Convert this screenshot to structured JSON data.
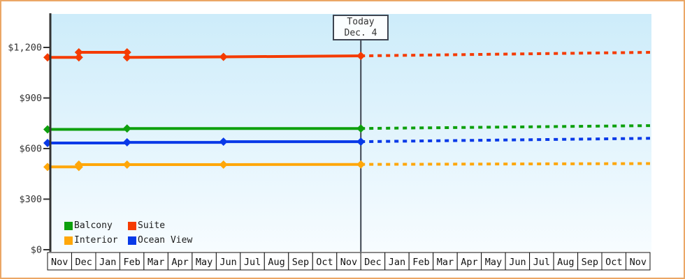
{
  "frame": {
    "border_color": "#eba766",
    "background": "#ffffff"
  },
  "chart_data": {
    "type": "line",
    "title": "",
    "description": "Cruise cabin price history by category with dotted forecast after today marker",
    "axis_color": "#333333",
    "plot_bg_gradient": {
      "top": "#cdecfa",
      "bottom": "#f7fcff"
    },
    "y_axis": {
      "min": 0,
      "max": 1200,
      "ticks": [
        {
          "value": 0,
          "label": "$0"
        },
        {
          "value": 300,
          "label": "$300"
        },
        {
          "value": 600,
          "label": "$600"
        },
        {
          "value": 900,
          "label": "$900"
        },
        {
          "value": 1200,
          "label": "$1,200"
        }
      ]
    },
    "x_axis": {
      "months": [
        "Nov",
        "Dec",
        "Jan",
        "Feb",
        "Mar",
        "Apr",
        "May",
        "Jun",
        "Jul",
        "Aug",
        "Sep",
        "Oct",
        "Nov",
        "Dec",
        "Jan",
        "Feb",
        "Mar",
        "Apr",
        "May",
        "Jun",
        "Jul",
        "Aug",
        "Sep",
        "Oct",
        "Nov"
      ]
    },
    "today": {
      "line1": "Today",
      "line2": "Dec. 4",
      "month_index": 13
    },
    "legend_order": [
      "Balcony",
      "Suite",
      "Interior",
      "Ocean View"
    ],
    "series": [
      {
        "name": "Interior",
        "color": "#ffa70a",
        "solid": [
          [
            0,
            491
          ],
          [
            1.3,
            491
          ],
          [
            1.3,
            505
          ],
          [
            3.3,
            505
          ],
          [
            7.3,
            505
          ],
          [
            13,
            506
          ]
        ],
        "markers": [
          [
            0,
            491
          ],
          [
            1.3,
            491
          ],
          [
            1.3,
            505
          ],
          [
            3.3,
            505
          ],
          [
            7.3,
            505
          ],
          [
            13,
            506
          ]
        ],
        "forecast": [
          [
            13,
            506
          ],
          [
            25,
            511
          ]
        ]
      },
      {
        "name": "Ocean View",
        "color": "#0839e8",
        "solid": [
          [
            0,
            633
          ],
          [
            3.3,
            633
          ],
          [
            3.3,
            637
          ],
          [
            7.3,
            637
          ],
          [
            7.3,
            641
          ],
          [
            13,
            641
          ]
        ],
        "markers": [
          [
            0,
            633
          ],
          [
            3.3,
            637
          ],
          [
            7.3,
            641
          ],
          [
            13,
            641
          ]
        ],
        "forecast": [
          [
            13,
            641
          ],
          [
            25,
            661
          ]
        ]
      },
      {
        "name": "Balcony",
        "color": "#0da00d",
        "solid": [
          [
            0,
            714
          ],
          [
            3.3,
            714
          ],
          [
            3.3,
            719
          ],
          [
            13,
            719
          ]
        ],
        "markers": [
          [
            0,
            714
          ],
          [
            3.3,
            719
          ],
          [
            13,
            719
          ]
        ],
        "forecast": [
          [
            13,
            719
          ],
          [
            25,
            736
          ]
        ]
      },
      {
        "name": "Suite",
        "color": "#f53b01",
        "solid": [
          [
            0,
            1141
          ],
          [
            1.3,
            1141
          ],
          [
            1.3,
            1171
          ],
          [
            3.3,
            1171
          ],
          [
            3.3,
            1141
          ],
          [
            7.3,
            1144
          ],
          [
            13,
            1150
          ]
        ],
        "markers": [
          [
            0,
            1141
          ],
          [
            1.3,
            1141
          ],
          [
            1.3,
            1171
          ],
          [
            3.3,
            1171
          ],
          [
            3.3,
            1141
          ],
          [
            7.3,
            1144
          ],
          [
            13,
            1150
          ]
        ],
        "forecast": [
          [
            13,
            1150
          ],
          [
            25,
            1171
          ]
        ]
      }
    ]
  }
}
